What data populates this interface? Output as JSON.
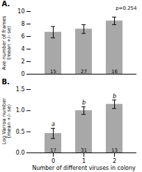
{
  "chart_data": [
    {
      "type": "bar",
      "title": "A.",
      "categories": [
        null,
        null,
        null
      ],
      "values": [
        6.7,
        7.2,
        8.5
      ],
      "errors": [
        0.9,
        0.7,
        0.6
      ],
      "n": [
        15,
        27,
        16
      ],
      "annotations": [
        "p=0.254"
      ],
      "ylabel": "Ave number of frames\n(mean +/- se)",
      "ylim": [
        0,
        10
      ],
      "yticks": [
        0,
        2,
        4,
        6,
        8,
        10
      ],
      "color": "#a8a8a8",
      "grid": false
    },
    {
      "type": "bar",
      "title": "B.",
      "categories": [
        "0",
        "1",
        "2"
      ],
      "values": [
        0.46,
        1.0,
        1.15
      ],
      "errors": [
        0.12,
        0.09,
        0.1
      ],
      "n": [
        17,
        31,
        13
      ],
      "sig_labels": [
        "a",
        "b",
        "b"
      ],
      "ylabel": "Log Varroa number\n(mean +/- se)",
      "xlabel": "Number of different viruses in colony",
      "ylim": [
        0.0,
        1.5
      ],
      "yticks": [
        {
          "value": 0,
          "label": "0.0"
        },
        0.5,
        {
          "value": 1,
          "label": "1.0"
        },
        1.5
      ],
      "color": "#a8a8a8",
      "grid": false
    }
  ]
}
